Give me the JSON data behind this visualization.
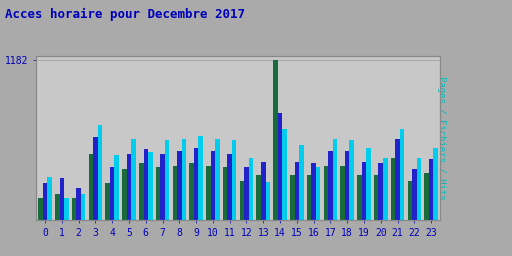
{
  "title": "Acces horaire pour Decembre 2017",
  "ylabel_right": "Pages / Fichiers / Hits",
  "ymax_label": "1182",
  "hours": [
    0,
    1,
    2,
    3,
    4,
    5,
    6,
    7,
    8,
    9,
    10,
    11,
    12,
    13,
    14,
    15,
    16,
    17,
    18,
    19,
    20,
    21,
    22,
    23
  ],
  "pages": [
    160,
    190,
    160,
    490,
    270,
    380,
    420,
    390,
    400,
    420,
    400,
    390,
    290,
    330,
    1182,
    330,
    330,
    400,
    395,
    330,
    330,
    460,
    290,
    350
  ],
  "fichiers": [
    270,
    310,
    240,
    610,
    390,
    490,
    520,
    490,
    510,
    530,
    510,
    490,
    390,
    430,
    790,
    430,
    420,
    510,
    510,
    430,
    420,
    600,
    380,
    450
  ],
  "hits": [
    320,
    165,
    195,
    700,
    480,
    600,
    500,
    590,
    600,
    620,
    600,
    590,
    460,
    280,
    670,
    550,
    390,
    600,
    590,
    530,
    460,
    670,
    460,
    530
  ],
  "color_pages": "#1a6b3c",
  "color_fichiers": "#2222cc",
  "color_hits": "#00ccee",
  "bg_color": "#aaaaaa",
  "plot_bg": "#c8c8c8",
  "title_color": "#0000bb",
  "ylabel_color": "#00bbbb",
  "tick_color": "#0000bb",
  "grid_color": "#aaaaaa"
}
